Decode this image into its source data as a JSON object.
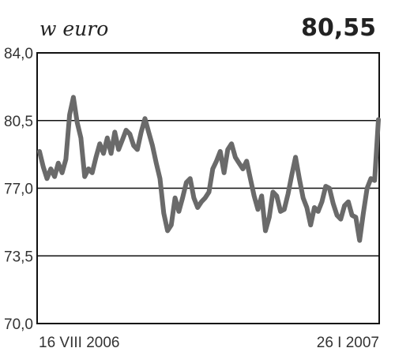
{
  "header": {
    "unit_label": "w euro",
    "headline_value": "80,55"
  },
  "chart_data": {
    "type": "line",
    "title": "",
    "xlabel": "",
    "ylabel": "w euro",
    "ylim": [
      70.0,
      84.0
    ],
    "yticks": [
      70.0,
      73.5,
      77.0,
      80.5,
      84.0
    ],
    "ytick_labels": [
      "70,0",
      "73,5",
      "77,0",
      "80,5",
      "84,0"
    ],
    "x_start_label": "16 VIII 2006",
    "x_end_label": "26 I 2007",
    "grid": true,
    "colors": {
      "line": "#6a6a6a",
      "grid": "#111111",
      "frame": "#111111"
    },
    "series": [
      {
        "values": [
          78.9,
          78.1,
          77.5,
          78.0,
          77.6,
          78.3,
          77.8,
          78.5,
          80.8,
          81.7,
          80.4,
          79.6,
          77.6,
          78.0,
          77.8,
          78.6,
          79.3,
          78.8,
          79.6,
          78.8,
          79.9,
          79.0,
          79.5,
          80.0,
          79.8,
          79.2,
          79.0,
          79.9,
          80.6,
          79.9,
          79.2,
          78.3,
          77.5,
          75.7,
          74.8,
          75.1,
          76.5,
          75.8,
          76.5,
          77.3,
          77.5,
          76.5,
          76.0,
          76.3,
          76.5,
          76.8,
          78.0,
          78.4,
          78.9,
          77.8,
          79.0,
          79.3,
          78.6,
          78.3,
          78.0,
          78.4,
          77.5,
          76.6,
          75.9,
          76.6,
          74.8,
          75.5,
          76.8,
          76.6,
          75.8,
          75.9,
          76.7,
          77.7,
          78.6,
          77.5,
          76.5,
          76.0,
          75.1,
          76.0,
          75.8,
          76.3,
          77.1,
          77.0,
          76.2,
          75.6,
          75.4,
          76.1,
          76.3,
          75.6,
          75.5,
          74.3,
          75.7,
          77.0,
          77.5,
          77.4,
          80.55
        ]
      }
    ]
  }
}
